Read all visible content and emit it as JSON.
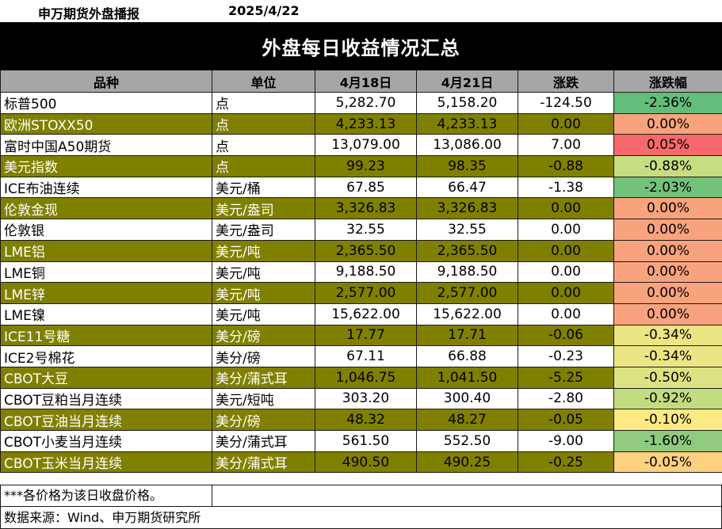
{
  "header": {
    "org": "申万期货外盘播报",
    "date": "2025/4/22",
    "title": "外盘每日收益情况汇总"
  },
  "columns": [
    "品种",
    "单位",
    "4月18日",
    "4月21日",
    "涨跌",
    "涨跌幅"
  ],
  "rows": [
    {
      "name": "标普500",
      "unit": "点",
      "d1": "5,282.70",
      "d2": "5,158.20",
      "chg": "-124.50",
      "pct": "-2.36%",
      "pct_color": "#63be7b",
      "style": "white"
    },
    {
      "name": "欧洲STOXX50",
      "unit": "点",
      "d1": "4,233.13",
      "d2": "4,233.13",
      "chg": "0.00",
      "pct": "0.00%",
      "pct_color": "#f8a37d",
      "style": "olive"
    },
    {
      "name": "富时中国A50期货",
      "unit": "点",
      "d1": "13,079.00",
      "d2": "13,086.00",
      "chg": "7.00",
      "pct": "0.05%",
      "pct_color": "#f8696b",
      "style": "white"
    },
    {
      "name": "美元指数",
      "unit": "点",
      "d1": "99.23",
      "d2": "98.35",
      "chg": "-0.88",
      "pct": "-0.88%",
      "pct_color": "#c6dd80",
      "style": "olive"
    },
    {
      "name": "ICE布油连续",
      "unit": "美元/桶",
      "d1": "67.85",
      "d2": "66.47",
      "chg": "-1.38",
      "pct": "-2.03%",
      "pct_color": "#72c27b",
      "style": "white"
    },
    {
      "name": "伦敦金现",
      "unit": "美元/盎司",
      "d1": "3,326.83",
      "d2": "3,326.83",
      "chg": "0.00",
      "pct": "0.00%",
      "pct_color": "#f8a37d",
      "style": "olive"
    },
    {
      "name": "伦敦银",
      "unit": "美元/盎司",
      "d1": "32.55",
      "d2": "32.55",
      "chg": "0.00",
      "pct": "0.00%",
      "pct_color": "#f8a37d",
      "style": "white"
    },
    {
      "name": "LME铝",
      "unit": "美元/吨",
      "d1": "2,365.50",
      "d2": "2,365.50",
      "chg": "0.00",
      "pct": "0.00%",
      "pct_color": "#f8a37d",
      "style": "olive"
    },
    {
      "name": "LME铜",
      "unit": "美元/吨",
      "d1": "9,188.50",
      "d2": "9,188.50",
      "chg": "0.00",
      "pct": "0.00%",
      "pct_color": "#f8a37d",
      "style": "white"
    },
    {
      "name": "LME锌",
      "unit": "美元/吨",
      "d1": "2,577.00",
      "d2": "2,577.00",
      "chg": "0.00",
      "pct": "0.00%",
      "pct_color": "#f8a37d",
      "style": "olive"
    },
    {
      "name": "LME镍",
      "unit": "美元/吨",
      "d1": "15,622.00",
      "d2": "15,622.00",
      "chg": "0.00",
      "pct": "0.00%",
      "pct_color": "#f8a37d",
      "style": "white"
    },
    {
      "name": "ICE11号糖",
      "unit": "美分/磅",
      "d1": "17.77",
      "d2": "17.71",
      "chg": "-0.06",
      "pct": "-0.34%",
      "pct_color": "#ece583",
      "style": "olive"
    },
    {
      "name": "ICE2号棉花",
      "unit": "美分/磅",
      "d1": "67.11",
      "d2": "66.88",
      "chg": "-0.23",
      "pct": "-0.34%",
      "pct_color": "#ece583",
      "style": "white"
    },
    {
      "name": "CBOT大豆",
      "unit": "美分/蒲式耳",
      "d1": "1,046.75",
      "d2": "1,041.50",
      "chg": "-5.25",
      "pct": "-0.50%",
      "pct_color": "#dde282",
      "style": "olive"
    },
    {
      "name": "CBOT豆粕当月连续",
      "unit": "美元/短吨",
      "d1": "303.20",
      "d2": "300.40",
      "chg": "-2.80",
      "pct": "-0.92%",
      "pct_color": "#c4dc80",
      "style": "white"
    },
    {
      "name": "CBOT豆油当月连续",
      "unit": "美分/磅",
      "d1": "48.32",
      "d2": "48.27",
      "chg": "-0.05",
      "pct": "-0.10%",
      "pct_color": "#fde983",
      "style": "olive"
    },
    {
      "name": "CBOT小麦当月连续",
      "unit": "美分/蒲式耳",
      "d1": "561.50",
      "d2": "552.50",
      "chg": "-9.00",
      "pct": "-1.60%",
      "pct_color": "#8fca7e",
      "style": "white"
    },
    {
      "name": "CBOT玉米当月连续",
      "unit": "美分/蒲式耳",
      "d1": "490.50",
      "d2": "490.25",
      "chg": "-0.25",
      "pct": "-0.05%",
      "pct_color": "#fdd17f",
      "style": "olive"
    }
  ],
  "footer": {
    "note": "***各价格为该日收盘价格。",
    "source": "数据来源：Wind、申万期货研究所"
  }
}
